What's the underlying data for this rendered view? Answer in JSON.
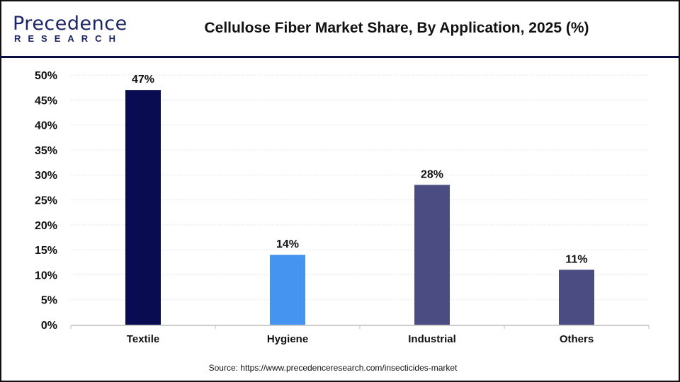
{
  "logo": {
    "line1": "Precedence",
    "line2": "RESEARCH"
  },
  "chart_data": {
    "type": "bar",
    "title": "Cellulose Fiber Market Share, By Application, 2025 (%)",
    "categories": [
      "Textile",
      "Hygiene",
      "Industrial",
      "Others"
    ],
    "values": [
      47,
      14,
      28,
      11
    ],
    "data_labels": [
      "47%",
      "14%",
      "28%",
      "11%"
    ],
    "colors": [
      "#0a0c52",
      "#4594f0",
      "#4b4c82",
      "#4b4c82"
    ],
    "xlabel": "",
    "ylabel": "",
    "ylim": [
      0,
      50
    ],
    "yticks": [
      "0%",
      "5%",
      "10%",
      "15%",
      "20%",
      "25%",
      "30%",
      "35%",
      "40%",
      "45%",
      "50%"
    ],
    "grid": true
  },
  "source": "Source: https://www.precedenceresearch.com/insecticides-market"
}
